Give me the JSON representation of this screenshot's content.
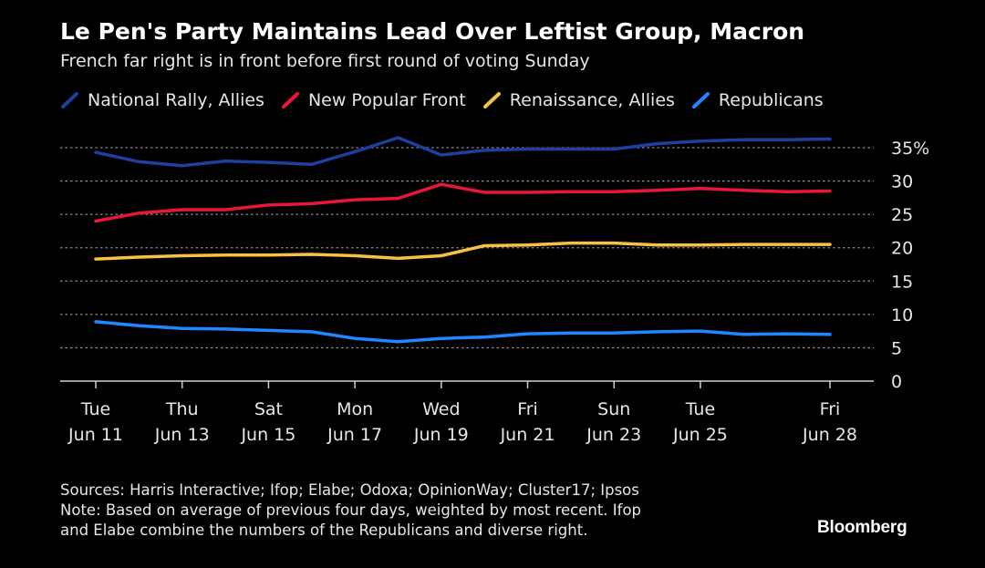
{
  "header": {
    "title": "Le Pen's Party Maintains Lead Over Leftist Group, Macron",
    "subtitle": "French far right is in front before first round of voting Sunday"
  },
  "footer": {
    "sources": "Sources: Harris Interactive; Ifop; Elabe; Odoxa; OpinionWay; Cluster17; Ipsos",
    "note_line1": "Note: Based on average of previous four days, weighted by most recent. Ifop",
    "note_line2": "and Elabe combine the numbers of the Republicans and diverse right.",
    "brand": "Bloomberg"
  },
  "chart_data": {
    "type": "line",
    "title": "Le Pen's Party Maintains Lead Over Leftist Group, Macron",
    "subtitle": "French far right is in front before first round of voting Sunday",
    "xlabel": "",
    "ylabel": "",
    "x": [
      "Jun 11",
      "Jun 12",
      "Jun 13",
      "Jun 14",
      "Jun 15",
      "Jun 16",
      "Jun 17",
      "Jun 18",
      "Jun 19",
      "Jun 20",
      "Jun 21",
      "Jun 22",
      "Jun 23",
      "Jun 24",
      "Jun 25",
      "Jun 26",
      "Jun 27",
      "Jun 28"
    ],
    "x_ticks": [
      {
        "day": "Tue",
        "date": "Jun 11",
        "index": 0
      },
      {
        "day": "Thu",
        "date": "Jun 13",
        "index": 2
      },
      {
        "day": "Sat",
        "date": "Jun 15",
        "index": 4
      },
      {
        "day": "Mon",
        "date": "Jun 17",
        "index": 6
      },
      {
        "day": "Wed",
        "date": "Jun 19",
        "index": 8
      },
      {
        "day": "Fri",
        "date": "Jun 21",
        "index": 10
      },
      {
        "day": "Sun",
        "date": "Jun 23",
        "index": 12
      },
      {
        "day": "Tue",
        "date": "Jun 25",
        "index": 14
      },
      {
        "day": "Fri",
        "date": "Jun 28",
        "index": 17
      }
    ],
    "y_ticks": [
      "0",
      "5",
      "10",
      "15",
      "20",
      "25",
      "30",
      "35%"
    ],
    "ylim": [
      0,
      35
    ],
    "grid": true,
    "legend_position": "top-left",
    "series": [
      {
        "name": "National Rally, Allies",
        "color": "#1f3fa0",
        "values": [
          34.3,
          32.9,
          32.3,
          33.0,
          32.8,
          32.5,
          34.4,
          36.5,
          33.9,
          34.6,
          34.8,
          34.8,
          34.8,
          35.6,
          36.0,
          36.2,
          36.2,
          36.3
        ]
      },
      {
        "name": "New Popular Front",
        "color": "#e8173a",
        "values": [
          24.0,
          25.2,
          25.7,
          25.7,
          26.4,
          26.6,
          27.2,
          27.4,
          29.5,
          28.3,
          28.3,
          28.4,
          28.4,
          28.6,
          28.9,
          28.6,
          28.4,
          28.5
        ]
      },
      {
        "name": "Renaissance, Allies",
        "color": "#f5c242",
        "values": [
          18.3,
          18.6,
          18.8,
          18.9,
          18.9,
          19.0,
          18.8,
          18.4,
          18.8,
          20.3,
          20.4,
          20.7,
          20.7,
          20.4,
          20.4,
          20.5,
          20.5,
          20.5
        ]
      },
      {
        "name": "Republicans",
        "color": "#1e88ff",
        "values": [
          8.9,
          8.3,
          7.9,
          7.8,
          7.6,
          7.4,
          6.4,
          5.9,
          6.4,
          6.6,
          7.1,
          7.2,
          7.2,
          7.4,
          7.5,
          7.0,
          7.1,
          7.0
        ]
      }
    ]
  }
}
